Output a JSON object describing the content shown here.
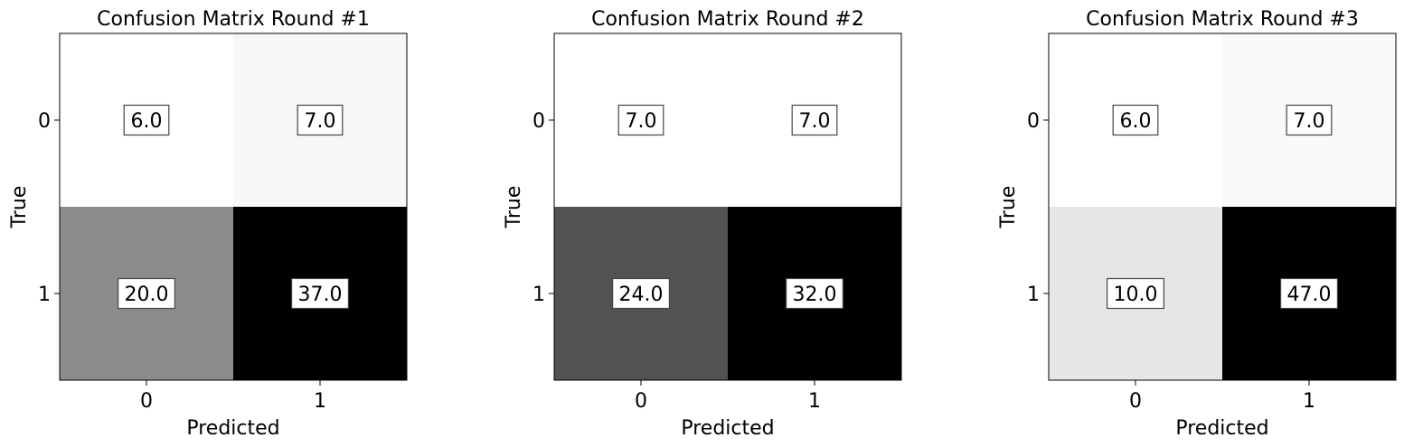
{
  "chart_data": [
    {
      "type": "heatmap",
      "title": "Confusion Matrix Round #1",
      "xlabel": "Predicted",
      "ylabel": "True",
      "x_ticks": [
        "0",
        "1"
      ],
      "y_ticks": [
        "0",
        "1"
      ],
      "values": [
        [
          6.0,
          7.0
        ],
        [
          20.0,
          37.0
        ]
      ],
      "cell_labels": [
        [
          "6.0",
          "7.0"
        ],
        [
          "20.0",
          "37.0"
        ]
      ],
      "colormap": "greys",
      "color_low": "#ffffff",
      "color_high": "#000000"
    },
    {
      "type": "heatmap",
      "title": "Confusion Matrix Round #2",
      "xlabel": "Predicted",
      "ylabel": "True",
      "x_ticks": [
        "0",
        "1"
      ],
      "y_ticks": [
        "0",
        "1"
      ],
      "values": [
        [
          7.0,
          7.0
        ],
        [
          24.0,
          32.0
        ]
      ],
      "cell_labels": [
        [
          "7.0",
          "7.0"
        ],
        [
          "24.0",
          "32.0"
        ]
      ],
      "colormap": "greys",
      "color_low": "#ffffff",
      "color_high": "#000000"
    },
    {
      "type": "heatmap",
      "title": "Confusion Matrix Round #3",
      "xlabel": "Predicted",
      "ylabel": "True",
      "x_ticks": [
        "0",
        "1"
      ],
      "y_ticks": [
        "0",
        "1"
      ],
      "values": [
        [
          6.0,
          7.0
        ],
        [
          10.0,
          47.0
        ]
      ],
      "cell_labels": [
        [
          "6.0",
          "7.0"
        ],
        [
          "10.0",
          "47.0"
        ]
      ],
      "colormap": "greys",
      "color_low": "#ffffff",
      "color_high": "#000000"
    }
  ]
}
